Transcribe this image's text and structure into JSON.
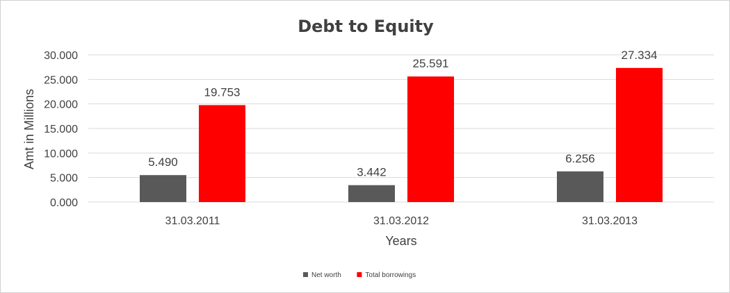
{
  "chart_data": {
    "type": "bar",
    "title": "Debt to Equity",
    "xlabel": "Years",
    "ylabel": "Amt in Millions",
    "categories": [
      "31.03.2011",
      "31.03.2012",
      "31.03.2013"
    ],
    "series": [
      {
        "name": "Net worth",
        "values": [
          5.49,
          3.442,
          6.256
        ],
        "labels": [
          "5.490",
          "3.442",
          "6.256"
        ],
        "color": "#595959"
      },
      {
        "name": "Total borrowings",
        "values": [
          19.753,
          25.591,
          27.334
        ],
        "labels": [
          "19.753",
          "25.591",
          "27.334"
        ],
        "color": "#ff0000"
      }
    ],
    "ylim": [
      0,
      30
    ],
    "yticks": [
      "0.000",
      "5.000",
      "10.000",
      "15.000",
      "20.000",
      "25.000",
      "30.000"
    ],
    "grid": true,
    "legend_position": "bottom"
  }
}
